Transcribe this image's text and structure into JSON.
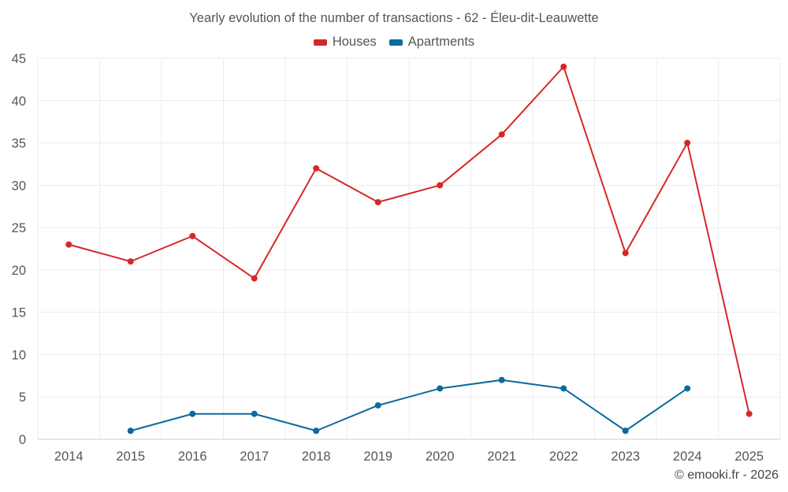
{
  "chart_data": {
    "type": "line",
    "title": "Yearly evolution of the number of transactions - 62 - Éleu-dit-Leauwette",
    "categories": [
      "2014",
      "2015",
      "2016",
      "2017",
      "2018",
      "2019",
      "2020",
      "2021",
      "2022",
      "2023",
      "2024",
      "2025"
    ],
    "series": [
      {
        "name": "Houses",
        "color": "#d62728",
        "values": [
          23,
          21,
          24,
          19,
          32,
          28,
          30,
          36,
          44,
          22,
          35,
          3
        ]
      },
      {
        "name": "Apartments",
        "color": "#0b6a9e",
        "values": [
          null,
          1,
          3,
          3,
          1,
          4,
          6,
          7,
          6,
          1,
          6,
          null
        ]
      }
    ],
    "ylim": [
      0,
      45
    ],
    "yticks": [
      0,
      5,
      10,
      15,
      20,
      25,
      30,
      35,
      40,
      45
    ],
    "xlabel": "",
    "ylabel": "",
    "grid": true,
    "legend_position": "top-center"
  },
  "credit": "© emooki.fr - 2026"
}
